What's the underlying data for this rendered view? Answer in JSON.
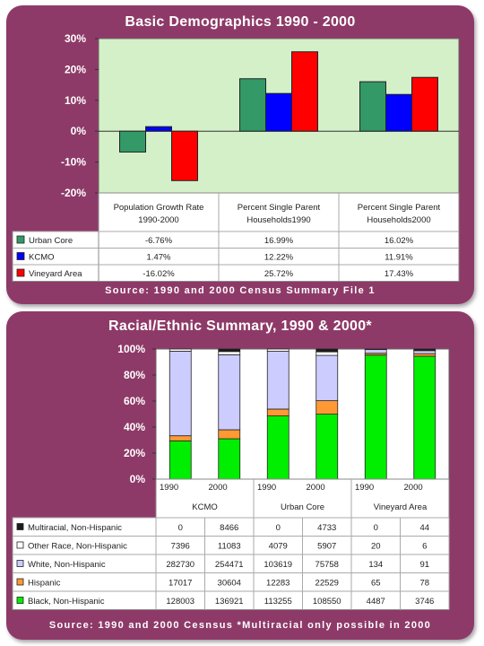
{
  "chart_data": [
    {
      "type": "bar",
      "title": "Basic Demographics 1990 - 2000",
      "source": "Source: 1990 and 2000 Census Summary File 1",
      "categories": [
        [
          "Population Growth Rate",
          "1990-2000"
        ],
        [
          "Percent Single Parent",
          "Households1990"
        ],
        [
          "Percent Single Parent",
          "Households2000"
        ]
      ],
      "ylim": [
        -20,
        30
      ],
      "yticks": [
        "30%",
        "20%",
        "10%",
        "0%",
        "-10%",
        "-20%"
      ],
      "ytick_values": [
        30,
        20,
        10,
        0,
        -10,
        -20
      ],
      "grid": false,
      "series": [
        {
          "name": "Urban Core",
          "color": "#339966",
          "values": [
            -6.76,
            16.99,
            16.02
          ],
          "labels": [
            "-6.76%",
            "16.99%",
            "16.02%"
          ]
        },
        {
          "name": "KCMO",
          "color": "#0000ff",
          "values": [
            1.47,
            12.22,
            11.91
          ],
          "labels": [
            "1.47%",
            "12.22%",
            "11.91%"
          ]
        },
        {
          "name": "Vineyard Area",
          "color": "#ff0000",
          "values": [
            -16.02,
            25.72,
            17.43
          ],
          "labels": [
            "-16.02%",
            "25.72%",
            "17.43%"
          ]
        }
      ]
    },
    {
      "type": "bar",
      "stacked": true,
      "normalized": true,
      "title": "Racial/Ethnic Summary, 1990 & 2000*",
      "source": "Source: 1990 and 2000 Cesnsus *Multiracial only possible in 2000",
      "groups": [
        "KCMO",
        "Urban Core",
        "Vineyard Area"
      ],
      "categories": [
        "1990",
        "2000",
        "1990",
        "2000",
        "1990",
        "2000"
      ],
      "yticks": [
        "100%",
        "80%",
        "60%",
        "40%",
        "20%",
        "0%"
      ],
      "ytick_values": [
        100,
        80,
        60,
        40,
        20,
        0
      ],
      "series": [
        {
          "name": "Multiracial, Non-Hispanic",
          "color": "#1a1a1a",
          "values": [
            0,
            8466,
            0,
            4733,
            0,
            44
          ]
        },
        {
          "name": "Other Race, Non-Hispanic",
          "color": "#ffffff",
          "values": [
            7396,
            11083,
            4079,
            5907,
            20,
            6
          ]
        },
        {
          "name": "White, Non-Hispanic",
          "color": "#ccccff",
          "values": [
            282730,
            254471,
            103619,
            75758,
            134,
            91
          ]
        },
        {
          "name": "Hispanic",
          "color": "#ff9933",
          "values": [
            17017,
            30604,
            12283,
            22529,
            65,
            78
          ]
        },
        {
          "name": "Black, Non-Hispanic",
          "color": "#00ee00",
          "values": [
            128003,
            136921,
            113255,
            108550,
            4487,
            3746
          ]
        }
      ]
    }
  ]
}
